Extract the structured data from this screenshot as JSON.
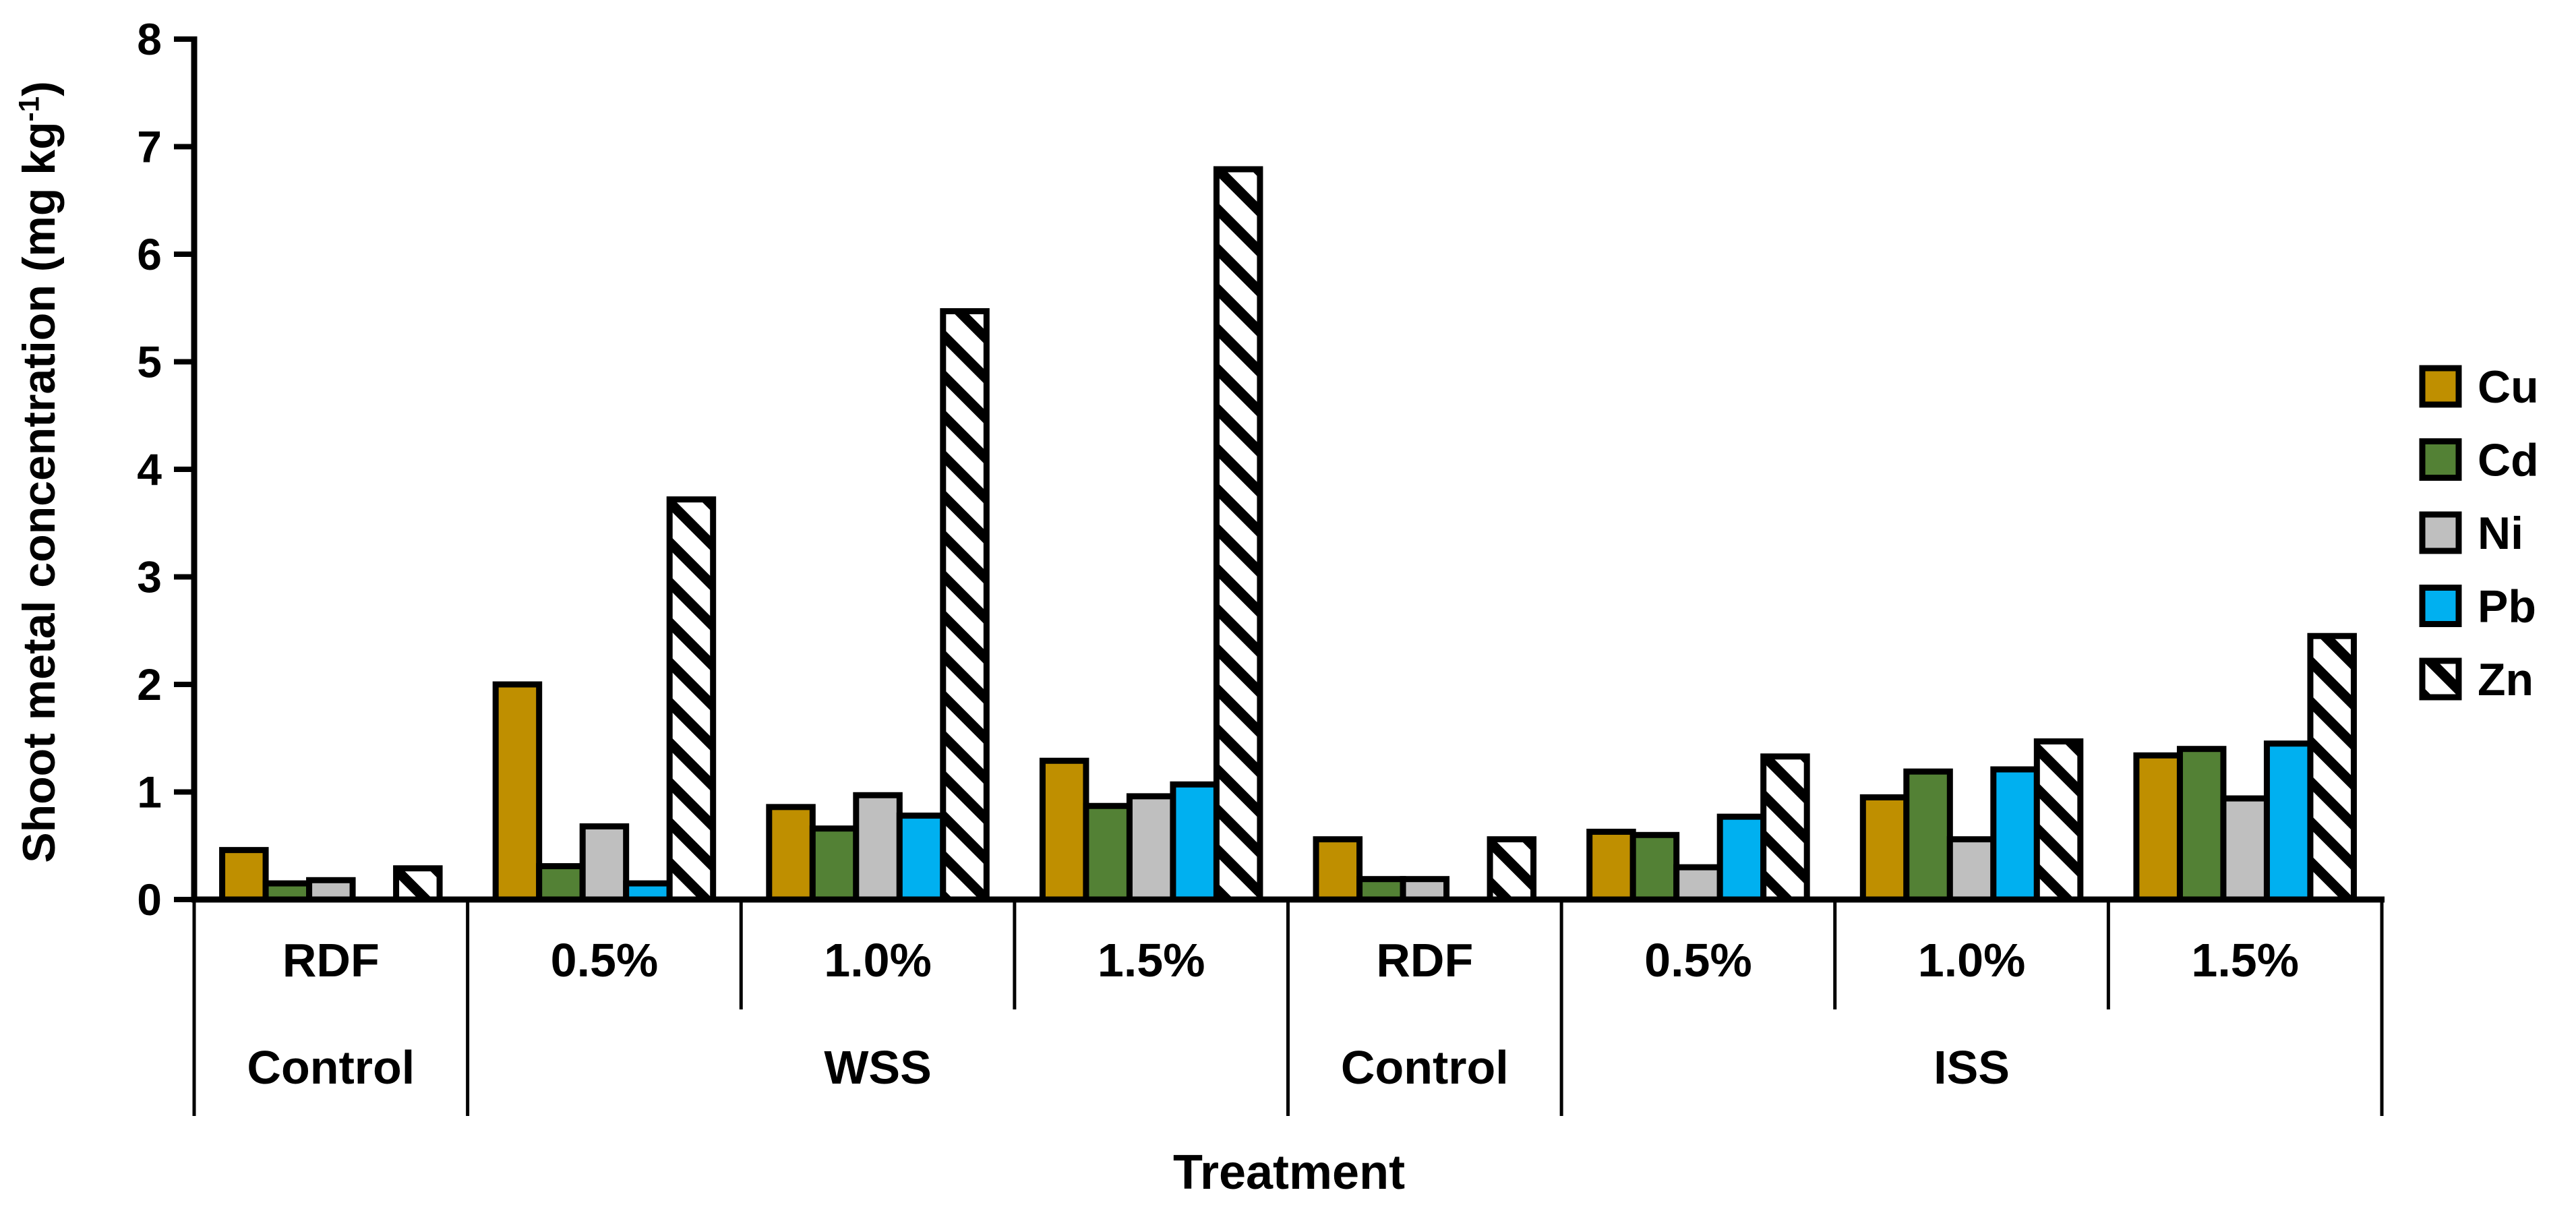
{
  "chart_data": {
    "type": "bar",
    "title": "",
    "xlabel": "Treatment",
    "ylabel_text": "Shoot metal concentration (mg kg-1)",
    "ylabel_parts": {
      "main": "Shoot metal concentration (mg kg",
      "sup": "-1",
      "end": ")"
    },
    "ylim": [
      0,
      8
    ],
    "ytick_step": 1,
    "yticks": [
      0,
      1,
      2,
      3,
      4,
      5,
      6,
      7,
      8
    ],
    "grid": false,
    "legend_position": "right",
    "categories": [
      "RDF",
      "0.5%",
      "1.0%",
      "1.5%",
      "RDF",
      "0.5%",
      "1.0%",
      "1.5%"
    ],
    "category_groups": [
      {
        "label": "Control",
        "span": 1
      },
      {
        "label": "WSS",
        "span": 3
      },
      {
        "label": "Control",
        "span": 1
      },
      {
        "label": "ISS",
        "span": 3
      }
    ],
    "bar_border_color": "#000000",
    "series": [
      {
        "name": "Cu",
        "color": "#BF8F00",
        "pattern": "solid",
        "values": [
          0.46,
          2.0,
          0.86,
          1.29,
          0.56,
          0.63,
          0.95,
          1.34
        ]
      },
      {
        "name": "Cd",
        "color": "#538135",
        "pattern": "solid",
        "values": [
          0.15,
          0.31,
          0.66,
          0.87,
          0.19,
          0.6,
          1.19,
          1.4
        ]
      },
      {
        "name": "Ni",
        "color": "#BFBFBF",
        "pattern": "solid",
        "values": [
          0.18,
          0.68,
          0.97,
          0.96,
          0.19,
          0.3,
          0.56,
          0.94
        ]
      },
      {
        "name": "Pb",
        "color": "#00B0F0",
        "pattern": "solid",
        "values": [
          0.0,
          0.15,
          0.78,
          1.07,
          0.0,
          0.77,
          1.21,
          1.45
        ]
      },
      {
        "name": "Zn",
        "color": "#FFFFFF",
        "pattern": "diagonal-hatch",
        "values": [
          0.29,
          3.72,
          5.47,
          6.79,
          0.56,
          1.33,
          1.47,
          2.45
        ]
      }
    ]
  }
}
